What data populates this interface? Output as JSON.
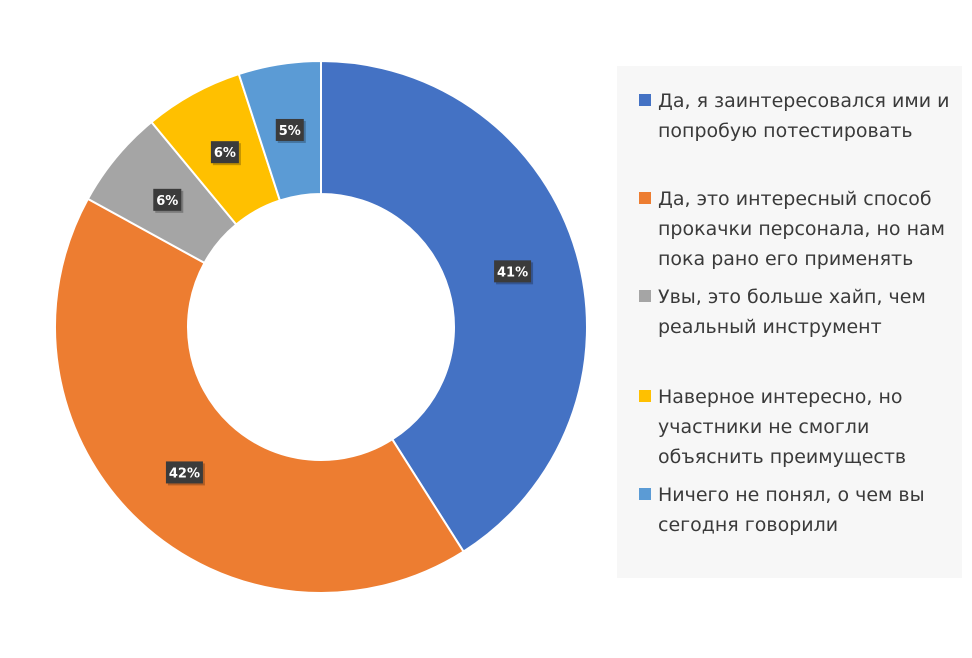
{
  "chart_data": {
    "type": "pie",
    "donut": true,
    "title": "",
    "legend_position": "right",
    "slices": [
      {
        "label": "Да, я заинтересовался ими и попробую потестировать",
        "value": 41,
        "display": "41%",
        "color": "#4472C4"
      },
      {
        "label": "Да, это интересный способ прокачки персонала, но нам пока рано его применять",
        "value": 42,
        "display": "42%",
        "color": "#ED7D31"
      },
      {
        "label": "Увы, это больше хайп, чем реальный инструмент",
        "value": 6,
        "display": "6%",
        "color": "#A5A5A5"
      },
      {
        "label": "Наверное интересно, но участники не смогли объяснить преимуществ",
        "value": 6,
        "display": "6%",
        "color": "#FFC000"
      },
      {
        "label": "Ничего не понял, о чем вы сегодня говорили",
        "value": 5,
        "display": "5%",
        "color": "#5B9BD5"
      }
    ]
  }
}
